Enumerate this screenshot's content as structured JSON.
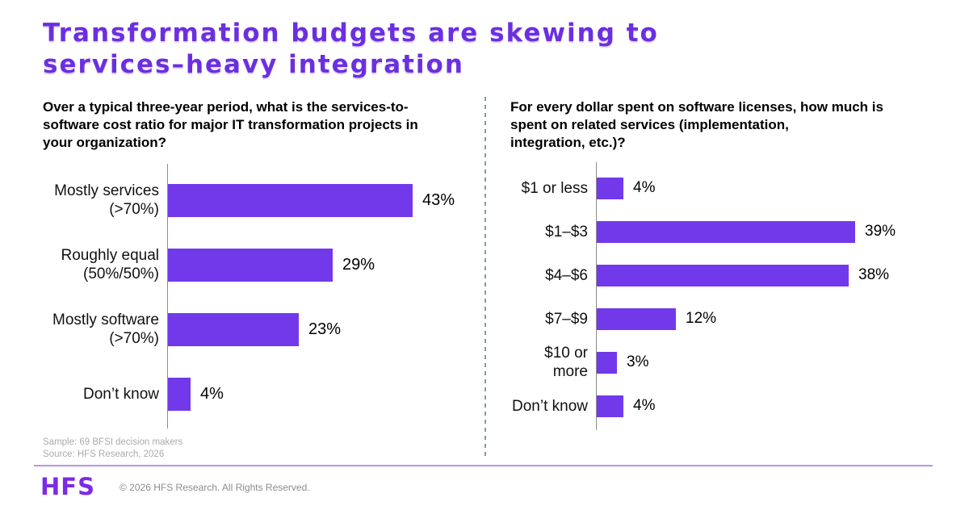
{
  "slide": {
    "title": "Transformation budgets are skewing to\nservices–heavy integration"
  },
  "chart_data": [
    {
      "type": "bar",
      "orientation": "horizontal",
      "title": "Over a typical three-year period, what is the services-to-\nsoftware cost ratio for major IT transformation projects in\nyour organization?",
      "categories": [
        "Mostly services (>70%)",
        "Roughly equal (50%/50%)",
        "Mostly software (>70%)",
        "Don’t know"
      ],
      "category_display": [
        "Mostly services\n(>70%)",
        "Roughly equal\n(50%/50%)",
        "Mostly software\n(>70%)",
        "Don’t know"
      ],
      "values": [
        43,
        29,
        23,
        4
      ],
      "value_labels": [
        "43%",
        "29%",
        "23%",
        "4%"
      ],
      "xlabel": "",
      "ylabel": "",
      "grid": false,
      "legend": false,
      "bar_color": "#7239EB"
    },
    {
      "type": "bar",
      "orientation": "horizontal",
      "title": "For every dollar spent on software licenses, how much is\nspent on related services (implementation,\nintegration, etc.)?",
      "categories": [
        "$1 or less",
        "$1–$3",
        "$4–$6",
        "$7–$9",
        "$10 or more",
        "Don’t know"
      ],
      "category_display": [
        "$1 or less",
        "$1–$3",
        "$4–$6",
        "$7–$9",
        "$10 or more",
        "Don’t know"
      ],
      "values": [
        4,
        39,
        38,
        12,
        3,
        4
      ],
      "value_labels": [
        "4%",
        "39%",
        "38%",
        "12%",
        "3%",
        "4%"
      ],
      "xlabel": "",
      "ylabel": "",
      "grid": false,
      "legend": false,
      "bar_color": "#7239EB"
    }
  ],
  "footer": {
    "sample_note": "Sample: 69 BFSI decision makers\nSource: HFS Research, 2026",
    "logo_text": "HFS",
    "copyright": "© 2026 HFS Research. All Rights Reserved."
  },
  "colors": {
    "accent_purple": "#7239EB",
    "title_purple": "#6B2FE0",
    "logo_purple": "#7B2BE8",
    "footer_divider_purple": "#BC93EA",
    "chart_divider_blue_gray": "#8199B5",
    "axis_gray": "#8C8C8C",
    "note_gray": "#ABABAB"
  }
}
